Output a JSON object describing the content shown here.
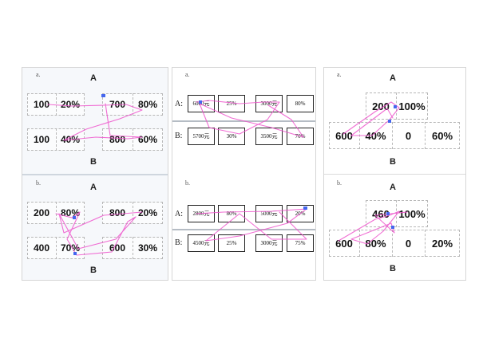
{
  "labels": {
    "a": "a.",
    "b": "b.",
    "row_a": "A",
    "row_b": "B",
    "colon_a": "A:",
    "colon_b": "B:"
  },
  "left_a": {
    "a1": "100",
    "a2": "20%",
    "a3": "700",
    "a4": "80%",
    "b1": "100",
    "b2": "40%",
    "b3": "800",
    "b4": "60%"
  },
  "left_b": {
    "a1": "200",
    "a2": "80%",
    "a3": "800",
    "a4": "20%",
    "b1": "400",
    "b2": "70%",
    "b3": "600",
    "b4": "30%"
  },
  "mid_a": {
    "a1": "6000元",
    "a2": "25%",
    "a3": "3000元",
    "a4": "80%",
    "b1": "5700元",
    "b2": "30%",
    "b3": "3500元",
    "b4": "70%"
  },
  "mid_b": {
    "a1": "2800元",
    "a2": "80%",
    "a3": "5000元",
    "a4": "20%",
    "b1": "4500元",
    "b2": "25%",
    "b3": "3000元",
    "b4": "75%"
  },
  "right_a": {
    "a1": "200",
    "a2": "100%",
    "b1": "600",
    "b2": "40%",
    "b3": "0",
    "b4": "60%"
  },
  "right_b": {
    "a1": "460",
    "a2": "100%",
    "b1": "600",
    "b2": "80%",
    "b3": "0",
    "b4": "20%"
  },
  "colors": {
    "gaze": "#ee55cc",
    "fixation": "#4466ee"
  }
}
